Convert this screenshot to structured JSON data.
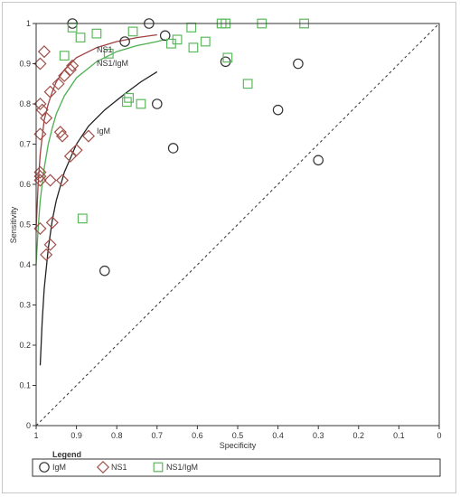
{
  "chart_data": {
    "type": "scatter",
    "subtype": "sroc",
    "xlabel": "Specificity",
    "ylabel": "Sensitivity",
    "xlim": [
      1,
      0
    ],
    "ylim": [
      0,
      1
    ],
    "x_reversed": true,
    "x_ticks": [
      "1",
      "0.9",
      "0.8",
      "0.7",
      "0.6",
      "0.5",
      "0.4",
      "0.3",
      "0.2",
      "0.1",
      "0"
    ],
    "y_ticks": [
      "0",
      "0.1",
      "0.2",
      "0.3",
      "0.4",
      "0.5",
      "0.6",
      "0.7",
      "0.8",
      "0.9",
      "1"
    ],
    "grid": false,
    "legend_position": "bottom",
    "legend_title": "Legend",
    "reference_line": {
      "style": "dashed",
      "from": [
        1,
        0
      ],
      "to": [
        0,
        1
      ]
    },
    "series": [
      {
        "name": "IgM",
        "marker": "circle",
        "color": "#333333",
        "points": [
          [
            0.91,
            1.0
          ],
          [
            0.72,
            1.0
          ],
          [
            0.68,
            0.97
          ],
          [
            0.78,
            0.955
          ],
          [
            0.53,
            0.905
          ],
          [
            0.35,
            0.9
          ],
          [
            0.7,
            0.8
          ],
          [
            0.4,
            0.785
          ],
          [
            0.66,
            0.69
          ],
          [
            0.3,
            0.66
          ],
          [
            0.83,
            0.385
          ]
        ]
      },
      {
        "name": "NS1",
        "marker": "diamond",
        "color": "#a0504a",
        "points": [
          [
            0.98,
            0.93
          ],
          [
            0.99,
            0.9
          ],
          [
            0.91,
            0.895
          ],
          [
            0.915,
            0.885
          ],
          [
            0.93,
            0.87
          ],
          [
            0.945,
            0.85
          ],
          [
            0.965,
            0.83
          ],
          [
            0.99,
            0.8
          ],
          [
            0.985,
            0.785
          ],
          [
            0.975,
            0.765
          ],
          [
            0.94,
            0.73
          ],
          [
            0.935,
            0.72
          ],
          [
            0.99,
            0.725
          ],
          [
            0.87,
            0.72
          ],
          [
            0.9,
            0.685
          ],
          [
            0.915,
            0.67
          ],
          [
            0.99,
            0.63
          ],
          [
            0.99,
            0.62
          ],
          [
            0.99,
            0.61
          ],
          [
            0.965,
            0.61
          ],
          [
            0.935,
            0.61
          ],
          [
            0.96,
            0.505
          ],
          [
            0.99,
            0.49
          ],
          [
            0.965,
            0.45
          ],
          [
            0.975,
            0.425
          ]
        ]
      },
      {
        "name": "NS1/IgM",
        "marker": "square",
        "color": "#5cb85c",
        "points": [
          [
            0.54,
            1.0
          ],
          [
            0.53,
            1.0
          ],
          [
            0.44,
            1.0
          ],
          [
            0.335,
            1.0
          ],
          [
            0.615,
            0.99
          ],
          [
            0.91,
            0.99
          ],
          [
            0.76,
            0.98
          ],
          [
            0.85,
            0.975
          ],
          [
            0.89,
            0.965
          ],
          [
            0.65,
            0.96
          ],
          [
            0.58,
            0.955
          ],
          [
            0.665,
            0.95
          ],
          [
            0.61,
            0.94
          ],
          [
            0.82,
            0.925
          ],
          [
            0.93,
            0.92
          ],
          [
            0.525,
            0.915
          ],
          [
            0.475,
            0.85
          ],
          [
            0.77,
            0.815
          ],
          [
            0.775,
            0.805
          ],
          [
            0.74,
            0.8
          ],
          [
            0.885,
            0.515
          ]
        ]
      }
    ],
    "curves": [
      {
        "name": "NS1",
        "label": "NS1",
        "color": "#a04040",
        "theta": 3.6,
        "points": [
          [
            1,
            0.49
          ],
          [
            0.995,
            0.6
          ],
          [
            0.99,
            0.675
          ],
          [
            0.98,
            0.76
          ],
          [
            0.97,
            0.8
          ],
          [
            0.96,
            0.83
          ],
          [
            0.95,
            0.855
          ],
          [
            0.93,
            0.885
          ],
          [
            0.9,
            0.915
          ],
          [
            0.85,
            0.94
          ],
          [
            0.8,
            0.955
          ],
          [
            0.75,
            0.965
          ],
          [
            0.7,
            0.972
          ]
        ]
      },
      {
        "name": "NS1/IgM",
        "label": "NS1/IgM",
        "color": "#4caf50",
        "theta": 3.3,
        "points": [
          [
            1,
            0.4
          ],
          [
            0.995,
            0.49
          ],
          [
            0.99,
            0.56
          ],
          [
            0.98,
            0.64
          ],
          [
            0.97,
            0.7
          ],
          [
            0.96,
            0.74
          ],
          [
            0.95,
            0.775
          ],
          [
            0.93,
            0.82
          ],
          [
            0.9,
            0.865
          ],
          [
            0.85,
            0.905
          ],
          [
            0.8,
            0.93
          ],
          [
            0.75,
            0.945
          ],
          [
            0.7,
            0.955
          ],
          [
            0.68,
            0.96
          ]
        ]
      },
      {
        "name": "IgM",
        "label": "IgM",
        "color": "#222222",
        "theta": 2.6,
        "points": [
          [
            0.99,
            0.15
          ],
          [
            0.985,
            0.26
          ],
          [
            0.98,
            0.34
          ],
          [
            0.97,
            0.44
          ],
          [
            0.96,
            0.51
          ],
          [
            0.95,
            0.56
          ],
          [
            0.93,
            0.63
          ],
          [
            0.9,
            0.7
          ],
          [
            0.87,
            0.745
          ],
          [
            0.83,
            0.785
          ],
          [
            0.78,
            0.825
          ],
          [
            0.74,
            0.855
          ],
          [
            0.7,
            0.88
          ]
        ]
      }
    ],
    "curve_labels": [
      "NS1",
      "NS1/IgM",
      "IgM"
    ]
  }
}
